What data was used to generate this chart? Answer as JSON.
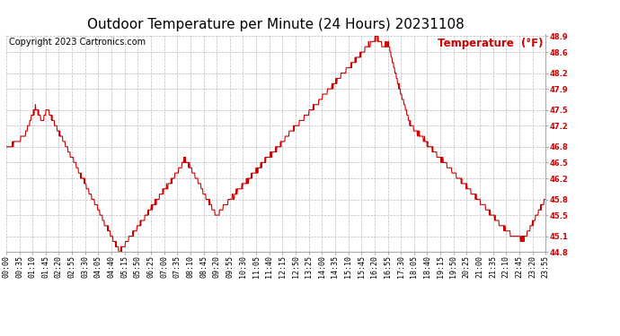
{
  "title": "Outdoor Temperature per Minute (24 Hours) 20231108",
  "copyright_text": "Copyright 2023 Cartronics.com",
  "legend_text": "Temperature  (°F)",
  "line_color": "#cc0000",
  "legend_color": "#cc0000",
  "copyright_color": "#000000",
  "title_color": "#000000",
  "bg_color": "#ffffff",
  "grid_color": "#bbbbbb",
  "ylabel_color": "#cc0000",
  "ylim": [
    44.8,
    48.95
  ],
  "yticks": [
    44.8,
    45.1,
    45.5,
    45.8,
    46.2,
    46.5,
    46.8,
    47.2,
    47.5,
    47.9,
    48.2,
    48.6,
    48.9
  ],
  "xtick_labels": [
    "00:00",
    "00:35",
    "01:10",
    "01:45",
    "02:20",
    "02:55",
    "03:30",
    "04:05",
    "04:40",
    "05:15",
    "05:50",
    "06:25",
    "07:00",
    "07:35",
    "08:10",
    "08:45",
    "09:20",
    "09:55",
    "10:30",
    "11:05",
    "11:40",
    "12:15",
    "12:50",
    "13:25",
    "14:00",
    "14:35",
    "15:10",
    "15:45",
    "16:20",
    "16:55",
    "17:30",
    "18:05",
    "18:40",
    "19:15",
    "19:50",
    "20:25",
    "21:00",
    "21:35",
    "22:10",
    "22:45",
    "23:20",
    "23:55"
  ],
  "line_width": 0.8,
  "title_fontsize": 11,
  "tick_fontsize": 6.0,
  "copyright_fontsize": 7.0,
  "legend_fontsize": 8.5,
  "fig_width": 6.9,
  "fig_height": 3.75,
  "dpi": 100
}
